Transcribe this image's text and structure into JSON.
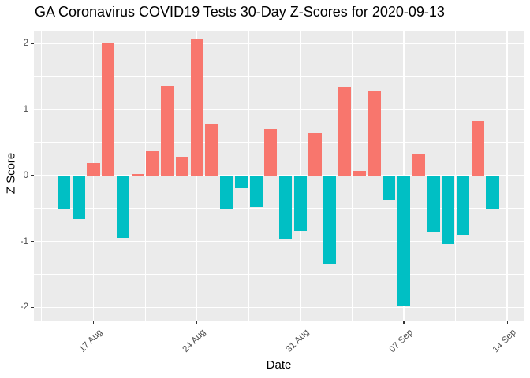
{
  "chart_data": {
    "type": "bar",
    "title": "GA Coronavirus COVID19 Tests 30-Day Z-Scores for 2020-09-13",
    "xlabel": "Date",
    "ylabel": "Z Score",
    "legend": "none",
    "grid": "on",
    "panel_bg": "#EBEBEB",
    "grid_color": "#FFFFFF",
    "tick_label_color": "#4D4D4D",
    "positive_color": "#F8766D",
    "negative_color": "#00BFC4",
    "ylim": [
      -2.21,
      2.18
    ],
    "y_ticks": [
      2,
      1,
      0,
      -1,
      -2
    ],
    "y_tick_labels": [
      "2",
      "1",
      "0",
      "-1",
      "-2"
    ],
    "x_tick_labels": [
      "17 Aug",
      "24 Aug",
      "31 Aug",
      "07 Sep",
      "14 Sep"
    ],
    "x_tick_day_index": [
      2,
      9,
      16,
      23,
      30
    ],
    "categories": [
      "2020-08-15",
      "2020-08-16",
      "2020-08-17",
      "2020-08-18",
      "2020-08-19",
      "2020-08-20",
      "2020-08-21",
      "2020-08-22",
      "2020-08-23",
      "2020-08-24",
      "2020-08-25",
      "2020-08-26",
      "2020-08-27",
      "2020-08-28",
      "2020-08-29",
      "2020-08-30",
      "2020-08-31",
      "2020-09-01",
      "2020-09-02",
      "2020-09-03",
      "2020-09-04",
      "2020-09-05",
      "2020-09-06",
      "2020-09-07",
      "2020-09-08",
      "2020-09-09",
      "2020-09-10",
      "2020-09-11",
      "2020-09-12",
      "2020-09-13"
    ],
    "values": [
      -0.5,
      -0.66,
      0.19,
      2.0,
      -0.95,
      0.02,
      0.37,
      1.36,
      0.28,
      2.07,
      0.78,
      -0.52,
      -0.2,
      -0.48,
      0.7,
      -0.96,
      -0.84,
      0.64,
      -1.34,
      1.35,
      0.07,
      1.28,
      -0.37,
      -1.99,
      0.33,
      -0.85,
      -1.04,
      -0.9,
      0.82,
      -0.52
    ]
  }
}
